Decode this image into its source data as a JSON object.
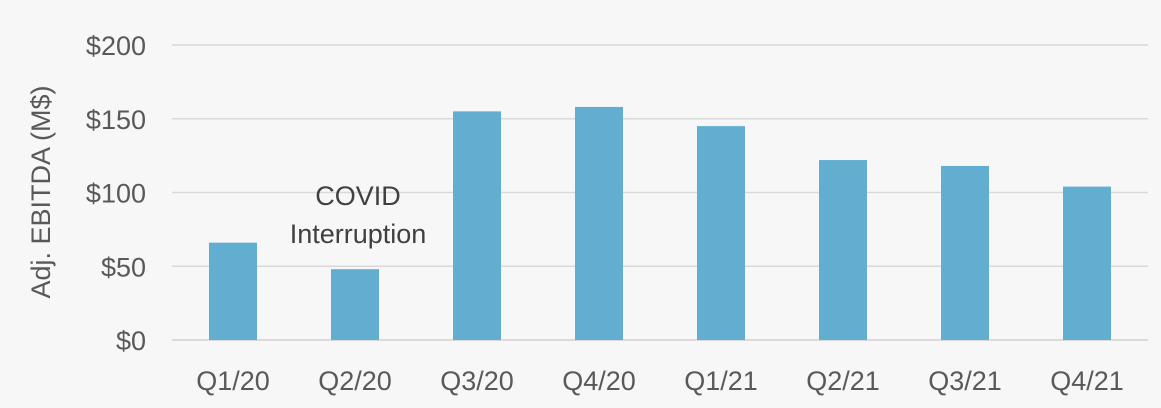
{
  "chart_data": {
    "type": "bar",
    "categories": [
      "Q1/20",
      "Q2/20",
      "Q3/20",
      "Q4/20",
      "Q1/21",
      "Q2/21",
      "Q3/21",
      "Q4/21"
    ],
    "values": [
      66,
      48,
      155,
      158,
      145,
      122,
      118,
      104
    ],
    "title": "",
    "xlabel": "",
    "ylabel": "Adj. EBITDA (M$)",
    "ylim": [
      0,
      200
    ],
    "yticks": [
      0,
      50,
      100,
      150,
      200
    ],
    "ytick_labels": [
      "$0",
      "$50",
      "$100",
      "$150",
      "$200"
    ],
    "grid": true,
    "legend": "none",
    "bar_color": "#62aed0",
    "annotations": [
      {
        "lines": [
          "COVID",
          "Interruption"
        ],
        "category": "Q2/20"
      }
    ]
  },
  "colors": {
    "background": "#f7f7f7",
    "gridline": "#d9d9d9",
    "text": "#595959"
  }
}
